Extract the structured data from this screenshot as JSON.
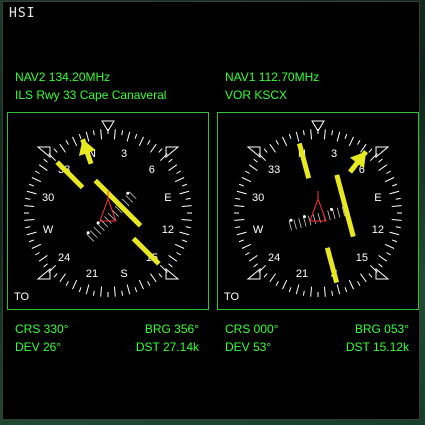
{
  "window": {
    "title": "HSI"
  },
  "left": {
    "nav_label": "NAV2 134.20MHz",
    "nav_desc": "ILS Rwy 33 Cape Canaveral",
    "to_from": "TO",
    "crs": "CRS 330°",
    "brg": "BRG 356°",
    "dev": "DEV 26°",
    "dst": "DST 27.14k",
    "heading_deg": 15,
    "course_deg": 330,
    "bearing_deg": 356,
    "cdi_deflection": 0.5
  },
  "right": {
    "nav_label": "NAV1 112.70MHz",
    "nav_desc": "VOR KSCX",
    "to_from": "TO",
    "crs": "CRS 000°",
    "brg": "BRG 053°",
    "dev": "DEV 53°",
    "dst": "DST 15.12k",
    "heading_deg": 15,
    "course_deg": 0,
    "bearing_deg": 53,
    "cdi_deflection": 1.0
  },
  "colors": {
    "nav_text": "#33ff33",
    "needle": "#e8e820",
    "aircraft": "#ff3030",
    "dial": "#ffffff",
    "border": "#2fc22f"
  },
  "compass_labels": [
    "N",
    "3",
    "6",
    "E",
    "12",
    "15",
    "S",
    "21",
    "24",
    "W",
    "30",
    "33"
  ]
}
